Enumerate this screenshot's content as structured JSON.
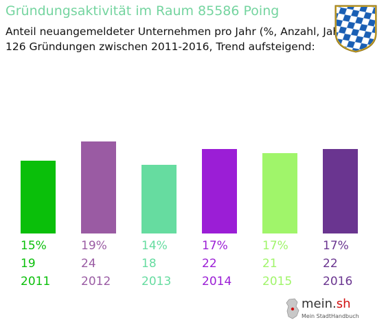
{
  "header": {
    "title": "Gründungsaktivität im Raum 85586 Poing",
    "subtitle_line1": "Anteil neuangemeldeter Unternehmen pro Jahr (%, Anzahl, Jahr)",
    "subtitle_line2": "126 Gründungen zwischen 2011-2016, Trend aufsteigend:"
  },
  "crest": {
    "icon": "bavarian-coat-of-arms",
    "colors": [
      "#1a5fb4",
      "#ffffff",
      "#c9a227"
    ]
  },
  "chart_data": {
    "type": "bar",
    "categories": [
      "2011",
      "2012",
      "2013",
      "2014",
      "2015",
      "2016"
    ],
    "percent_labels": [
      "15%",
      "19%",
      "14%",
      "17%",
      "17%",
      "17%"
    ],
    "count_labels": [
      "19",
      "24",
      "18",
      "22",
      "21",
      "22"
    ],
    "values": [
      19,
      24,
      18,
      22,
      21,
      22
    ],
    "colors": [
      "#0abf0a",
      "#9a5ba3",
      "#66dca0",
      "#9b1ed6",
      "#a0f56a",
      "#6a3590"
    ],
    "ylim": [
      0,
      24
    ],
    "grid": false
  },
  "logo": {
    "icon": "germany-map-icon",
    "text_main": "mein.",
    "text_accent": "sh",
    "tagline": "Mein StadtHandbuch"
  }
}
